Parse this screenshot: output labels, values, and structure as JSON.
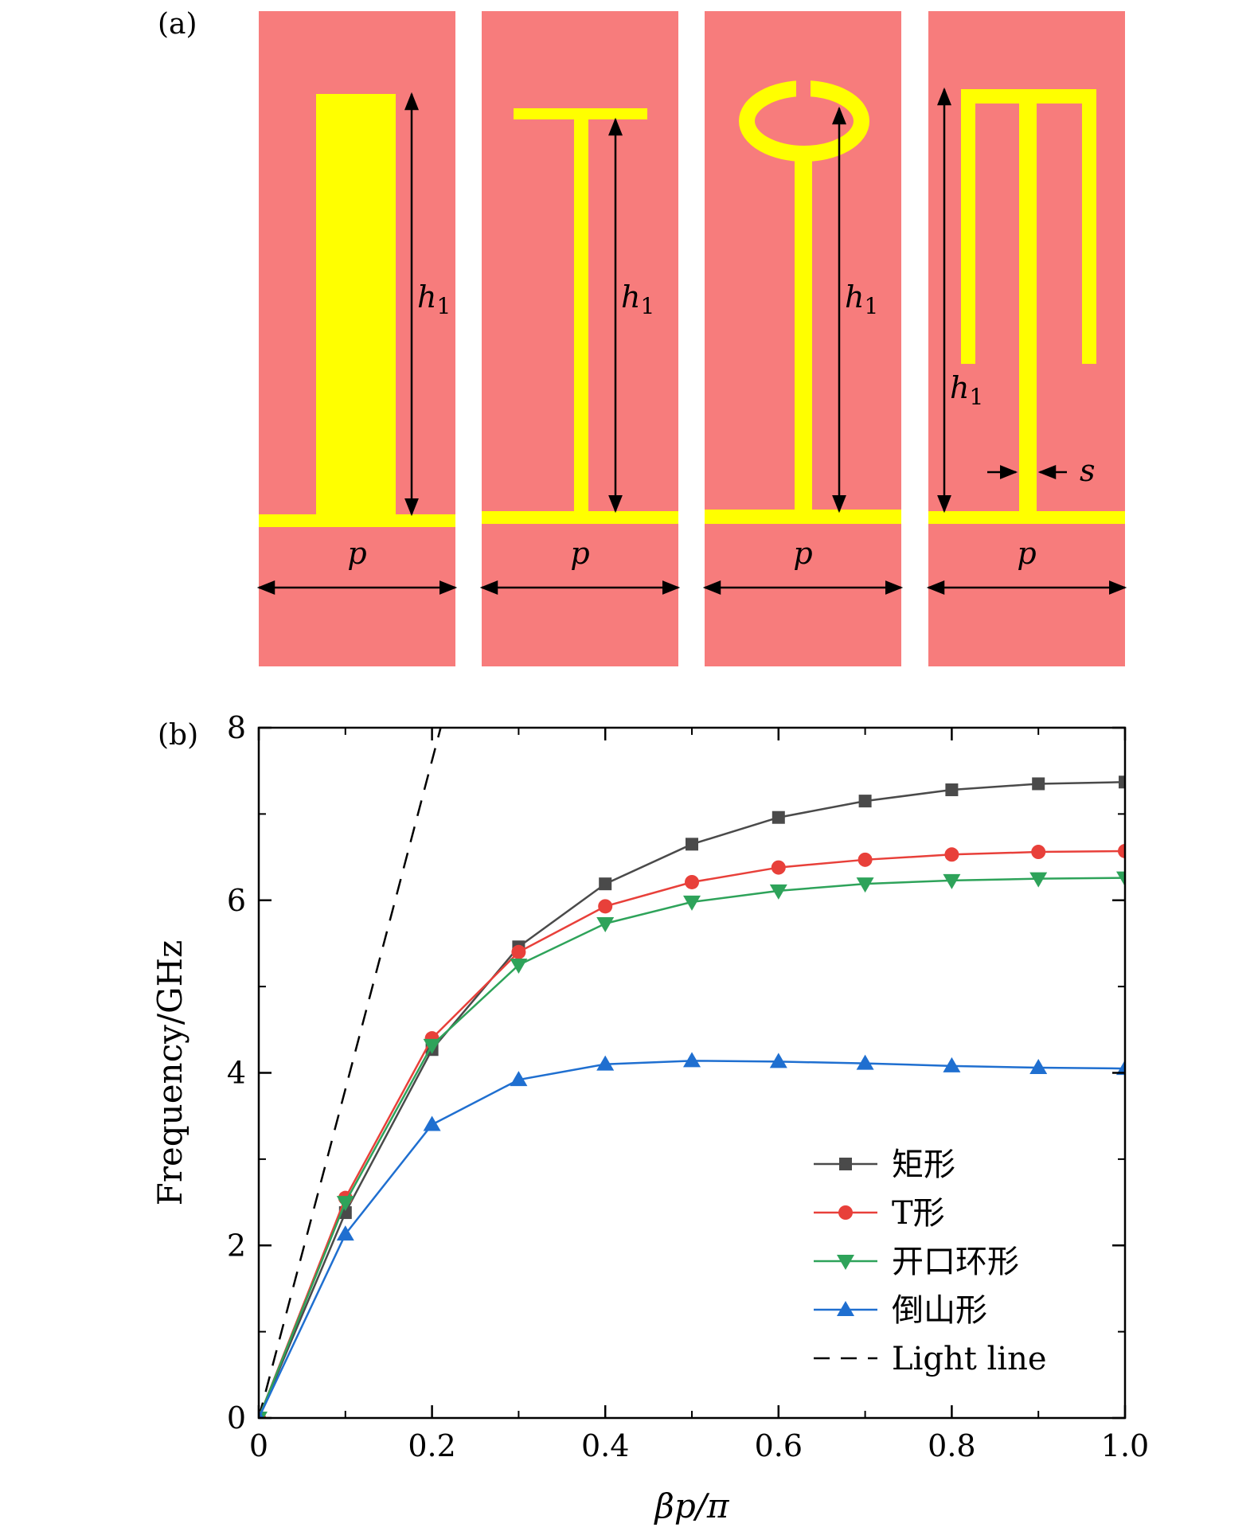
{
  "panel_a": {
    "label": "(a)",
    "colors": {
      "substrate": "#f77c7c",
      "metal": "#ffff00",
      "arrow": "#000000"
    },
    "h_label": "h",
    "h_sub": "1",
    "p_label": "p",
    "s_label": "s",
    "cells": [
      {
        "shape": "rectangle"
      },
      {
        "shape": "T"
      },
      {
        "shape": "split-ring"
      },
      {
        "shape": "inverted-mountain"
      }
    ]
  },
  "panel_b": {
    "label": "(b)"
  },
  "chart_data": {
    "type": "line",
    "xlabel": "βp/π",
    "ylabel": "Frequency/GHz",
    "xlim": [
      0,
      1.0
    ],
    "ylim": [
      0,
      8
    ],
    "xticks": [
      0,
      0.2,
      0.4,
      0.6,
      0.8,
      1.0
    ],
    "xtick_labels": [
      "0",
      "0.2",
      "0.4",
      "0.6",
      "0.8",
      "1.0"
    ],
    "yticks": [
      0,
      2,
      4,
      6,
      8
    ],
    "ytick_labels": [
      "0",
      "2",
      "4",
      "6",
      "8"
    ],
    "x": [
      0,
      0.1,
      0.2,
      0.3,
      0.4,
      0.5,
      0.6,
      0.7,
      0.8,
      0.9,
      1.0
    ],
    "legend_position": "bottom-right",
    "series": [
      {
        "name": "矩形",
        "marker": "square",
        "color": "#4a4a4a",
        "values": [
          0,
          2.38,
          4.27,
          5.46,
          6.19,
          6.65,
          6.96,
          7.15,
          7.28,
          7.35,
          7.37
        ]
      },
      {
        "name": "T形",
        "marker": "circle",
        "color": "#e8403a",
        "values": [
          0,
          2.55,
          4.4,
          5.4,
          5.93,
          6.21,
          6.38,
          6.47,
          6.53,
          6.56,
          6.57
        ]
      },
      {
        "name": "开口环形",
        "marker": "triangle-down",
        "color": "#2ea35a",
        "values": [
          0,
          2.5,
          4.32,
          5.25,
          5.73,
          5.98,
          6.11,
          6.19,
          6.23,
          6.25,
          6.26
        ]
      },
      {
        "name": "倒山形",
        "marker": "triangle-up",
        "color": "#1f6fd0",
        "values": [
          0,
          2.13,
          3.4,
          3.92,
          4.1,
          4.14,
          4.13,
          4.11,
          4.08,
          4.06,
          4.05
        ]
      }
    ],
    "light_line": {
      "name": "Light line",
      "color": "#000000",
      "x": [
        0,
        0.21
      ],
      "y": [
        0,
        8.0
      ]
    }
  }
}
